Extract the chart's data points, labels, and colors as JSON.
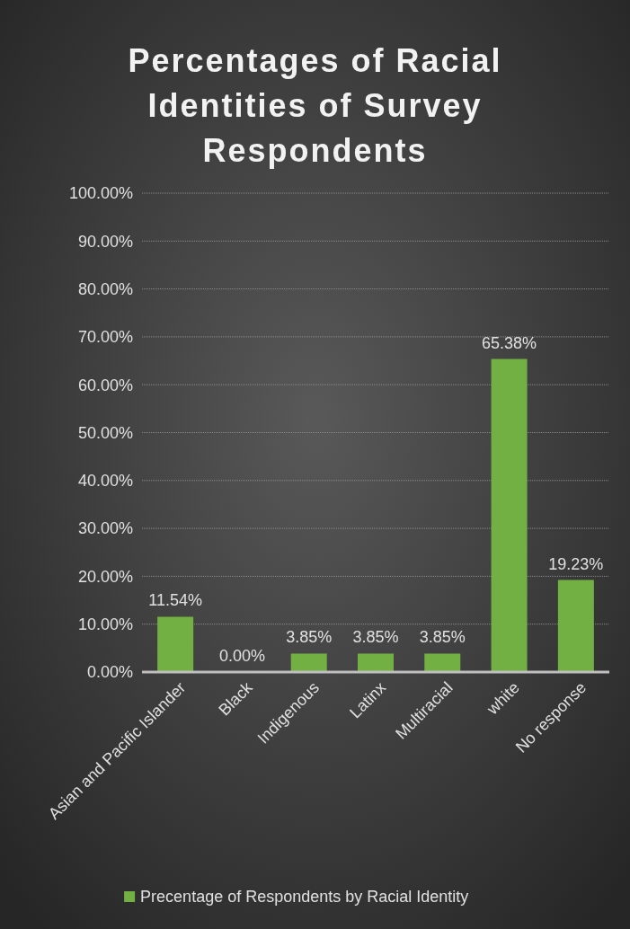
{
  "chart_data": {
    "type": "bar",
    "title": "Percentages of Racial Identities of Survey Respondents",
    "categories": [
      "Asian and Pacific Islander",
      "Black",
      "Indigenous",
      "Latinx",
      "Multiracial",
      "white",
      "No response"
    ],
    "series": [
      {
        "name": "Precentage of Respondents by Racial Identity",
        "color": "#72b043",
        "values": [
          11.54,
          0,
          3.85,
          3.85,
          3.85,
          65.38,
          19.23
        ],
        "value_labels": [
          "11.54%",
          "0.00%",
          "3.85%",
          "3.85%",
          "3.85%",
          "65.38%",
          "19.23%"
        ]
      }
    ],
    "ylim": [
      0,
      100
    ],
    "yticks": [
      {
        "value": 0,
        "label": "0.00%"
      },
      {
        "value": 10,
        "label": "10.00%"
      },
      {
        "value": 20,
        "label": "20.00%"
      },
      {
        "value": 30,
        "label": "30.00%"
      },
      {
        "value": 40,
        "label": "40.00%"
      },
      {
        "value": 50,
        "label": "50.00%"
      },
      {
        "value": 60,
        "label": "60.00%"
      },
      {
        "value": 70,
        "label": "70.00%"
      },
      {
        "value": 80,
        "label": "80.00%"
      },
      {
        "value": 90,
        "label": "90.00%"
      },
      {
        "value": 100,
        "label": "100.00%"
      }
    ],
    "grid": "y",
    "legend": "bottom"
  }
}
